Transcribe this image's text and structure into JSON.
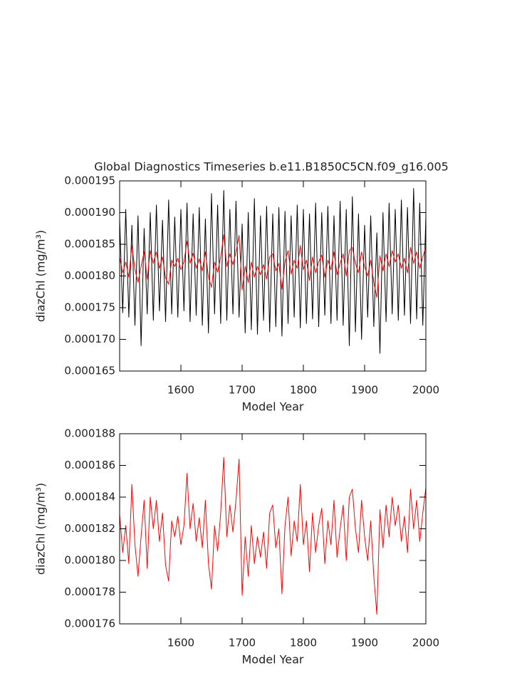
{
  "chart_data": [
    {
      "type": "line",
      "title": "Global Diagnostics Timeseries b.e11.B1850C5CN.f09_g16.005",
      "xlabel": "Model Year",
      "ylabel": "diazChl (mg/m³)",
      "xlim": [
        1500,
        2000
      ],
      "xticks": [
        1600,
        1700,
        1800,
        1900,
        2000
      ],
      "ylim": [
        0.000165,
        0.000195
      ],
      "yticks": [
        0.000165,
        {
          "value": 0.00017,
          "label": "0.000170"
        },
        0.000175,
        {
          "value": 0.00018,
          "label": "0.000180"
        },
        0.000185,
        {
          "value": 0.00019,
          "label": "0.000190"
        },
        0.000195
      ],
      "x": [
        1500,
        1505,
        1510,
        1515,
        1520,
        1525,
        1530,
        1535,
        1540,
        1545,
        1550,
        1555,
        1560,
        1565,
        1570,
        1575,
        1580,
        1585,
        1590,
        1595,
        1600,
        1605,
        1610,
        1615,
        1620,
        1625,
        1630,
        1635,
        1640,
        1645,
        1650,
        1655,
        1660,
        1665,
        1670,
        1675,
        1680,
        1685,
        1690,
        1695,
        1700,
        1705,
        1710,
        1715,
        1720,
        1725,
        1730,
        1735,
        1740,
        1745,
        1750,
        1755,
        1760,
        1765,
        1770,
        1775,
        1780,
        1785,
        1790,
        1795,
        1800,
        1805,
        1810,
        1815,
        1820,
        1825,
        1830,
        1835,
        1840,
        1845,
        1850,
        1855,
        1860,
        1865,
        1870,
        1875,
        1880,
        1885,
        1890,
        1895,
        1900,
        1905,
        1910,
        1915,
        1920,
        1925,
        1930,
        1935,
        1940,
        1945,
        1950,
        1955,
        1960,
        1965,
        1970,
        1975,
        1980,
        1985,
        1990,
        1995,
        2000
      ],
      "series": [
        {
          "color": "#000000",
          "values": [
            0.000189,
            0.0001742,
            0.0001905,
            0.0001735,
            0.000188,
            0.0001722,
            0.0001895,
            0.000169,
            0.0001875,
            0.000174,
            0.00019,
            0.000173,
            0.0001912,
            0.0001745,
            0.0001888,
            0.0001728,
            0.000192,
            0.000174,
            0.0001893,
            0.0001735,
            0.0001905,
            0.0001745,
            0.0001915,
            0.0001728,
            0.0001898,
            0.0001738,
            0.0001908,
            0.0001722,
            0.000189,
            0.000171,
            0.000193,
            0.000174,
            0.0001912,
            0.0001725,
            0.0001935,
            0.000173,
            0.0001905,
            0.000174,
            0.0001918,
            0.0001735,
            0.0001882,
            0.000171,
            0.00019,
            0.0001715,
            0.0001922,
            0.0001708,
            0.0001895,
            0.000173,
            0.000191,
            0.0001712,
            0.0001898,
            0.000172,
            0.0001908,
            0.0001705,
            0.0001902,
            0.0001725,
            0.0001895,
            0.0001735,
            0.0001912,
            0.0001718,
            0.0001905,
            0.0001725,
            0.0001898,
            0.0001732,
            0.0001915,
            0.000172,
            0.00019,
            0.0001738,
            0.000191,
            0.0001725,
            0.0001895,
            0.000173,
            0.0001918,
            0.0001722,
            0.0001905,
            0.000169,
            0.0001925,
            0.0001712,
            0.0001898,
            0.00017,
            0.000188,
            0.0001735,
            0.0001895,
            0.000172,
            0.0001868,
            0.0001678,
            0.00019,
            0.0001728,
            0.0001915,
            0.000174,
            0.0001905,
            0.000173,
            0.000192,
            0.0001738,
            0.0001908,
            0.0001725,
            0.0001938,
            0.0001732,
            0.0001915,
            0.0001722,
            0.0001895
          ]
        },
        {
          "color": "#ff0000",
          "values": [
            0.0001829,
            0.0001805,
            0.0001822,
            0.0001798,
            0.0001848,
            0.000181,
            0.000179,
            0.0001815,
            0.0001838,
            0.0001795,
            0.000184,
            0.000182,
            0.0001838,
            0.0001812,
            0.000183,
            0.0001797,
            0.0001787,
            0.0001825,
            0.0001815,
            0.0001828,
            0.000181,
            0.0001822,
            0.0001855,
            0.000182,
            0.0001836,
            0.0001812,
            0.0001827,
            0.0001808,
            0.0001838,
            0.0001798,
            0.0001782,
            0.0001822,
            0.0001806,
            0.000183,
            0.0001865,
            0.0001815,
            0.0001835,
            0.0001818,
            0.0001838,
            0.0001864,
            0.0001778,
            0.0001815,
            0.000179,
            0.0001822,
            0.0001798,
            0.0001815,
            0.0001802,
            0.0001818,
            0.0001795,
            0.000183,
            0.0001835,
            0.0001808,
            0.000182,
            0.0001779,
            0.0001822,
            0.000184,
            0.0001803,
            0.0001825,
            0.0001812,
            0.0001848,
            0.000181,
            0.0001825,
            0.0001793,
            0.000183,
            0.0001805,
            0.0001822,
            0.0001833,
            0.0001798,
            0.0001825,
            0.000181,
            0.0001838,
            0.0001802,
            0.000182,
            0.0001835,
            0.00018,
            0.000184,
            0.0001845,
            0.000182,
            0.0001805,
            0.0001838,
            0.0001815,
            0.00018,
            0.0001825,
            0.000179,
            0.0001766,
            0.0001832,
            0.0001808,
            0.0001835,
            0.0001815,
            0.000184,
            0.0001822,
            0.0001835,
            0.0001812,
            0.0001828,
            0.0001805,
            0.0001845,
            0.000182,
            0.0001838,
            0.0001812,
            0.000183,
            0.0001846
          ]
        }
      ]
    },
    {
      "type": "line",
      "xlabel": "Model Year",
      "ylabel": "diazChl (mg/m³)",
      "xlim": [
        1500,
        2000
      ],
      "xticks": [
        1600,
        1700,
        1800,
        1900,
        2000
      ],
      "ylim": [
        0.000176,
        0.000188
      ],
      "yticks": [
        0.000176,
        0.000178,
        {
          "value": 0.00018,
          "label": "0.000180"
        },
        0.000182,
        0.000184,
        0.000186,
        0.000188
      ],
      "x": [
        1500,
        1505,
        1510,
        1515,
        1520,
        1525,
        1530,
        1535,
        1540,
        1545,
        1550,
        1555,
        1560,
        1565,
        1570,
        1575,
        1580,
        1585,
        1590,
        1595,
        1600,
        1605,
        1610,
        1615,
        1620,
        1625,
        1630,
        1635,
        1640,
        1645,
        1650,
        1655,
        1660,
        1665,
        1670,
        1675,
        1680,
        1685,
        1690,
        1695,
        1700,
        1705,
        1710,
        1715,
        1720,
        1725,
        1730,
        1735,
        1740,
        1745,
        1750,
        1755,
        1760,
        1765,
        1770,
        1775,
        1780,
        1785,
        1790,
        1795,
        1800,
        1805,
        1810,
        1815,
        1820,
        1825,
        1830,
        1835,
        1840,
        1845,
        1850,
        1855,
        1860,
        1865,
        1870,
        1875,
        1880,
        1885,
        1890,
        1895,
        1900,
        1905,
        1910,
        1915,
        1920,
        1925,
        1930,
        1935,
        1940,
        1945,
        1950,
        1955,
        1960,
        1965,
        1970,
        1975,
        1980,
        1985,
        1990,
        1995,
        2000
      ],
      "series": [
        {
          "color": "#ff0000",
          "values": [
            0.0001829,
            0.0001805,
            0.0001822,
            0.0001798,
            0.0001848,
            0.000181,
            0.000179,
            0.0001815,
            0.0001838,
            0.0001795,
            0.000184,
            0.000182,
            0.0001838,
            0.0001812,
            0.000183,
            0.0001797,
            0.0001787,
            0.0001825,
            0.0001815,
            0.0001828,
            0.000181,
            0.0001822,
            0.0001855,
            0.000182,
            0.0001836,
            0.0001812,
            0.0001827,
            0.0001808,
            0.0001838,
            0.0001798,
            0.0001782,
            0.0001822,
            0.0001806,
            0.000183,
            0.0001865,
            0.0001815,
            0.0001835,
            0.0001818,
            0.0001838,
            0.0001864,
            0.0001778,
            0.0001815,
            0.000179,
            0.0001822,
            0.0001798,
            0.0001815,
            0.0001802,
            0.0001818,
            0.0001795,
            0.000183,
            0.0001835,
            0.0001808,
            0.000182,
            0.0001779,
            0.0001822,
            0.000184,
            0.0001803,
            0.0001825,
            0.0001812,
            0.0001848,
            0.000181,
            0.0001825,
            0.0001793,
            0.000183,
            0.0001805,
            0.0001822,
            0.0001833,
            0.0001798,
            0.0001825,
            0.000181,
            0.0001838,
            0.0001802,
            0.000182,
            0.0001835,
            0.00018,
            0.000184,
            0.0001845,
            0.000182,
            0.0001805,
            0.0001838,
            0.0001815,
            0.00018,
            0.0001825,
            0.000179,
            0.0001766,
            0.0001832,
            0.0001808,
            0.0001835,
            0.0001815,
            0.000184,
            0.0001822,
            0.0001835,
            0.0001812,
            0.0001828,
            0.0001805,
            0.0001845,
            0.000182,
            0.0001838,
            0.0001812,
            0.000183,
            0.0001846
          ]
        }
      ]
    }
  ]
}
